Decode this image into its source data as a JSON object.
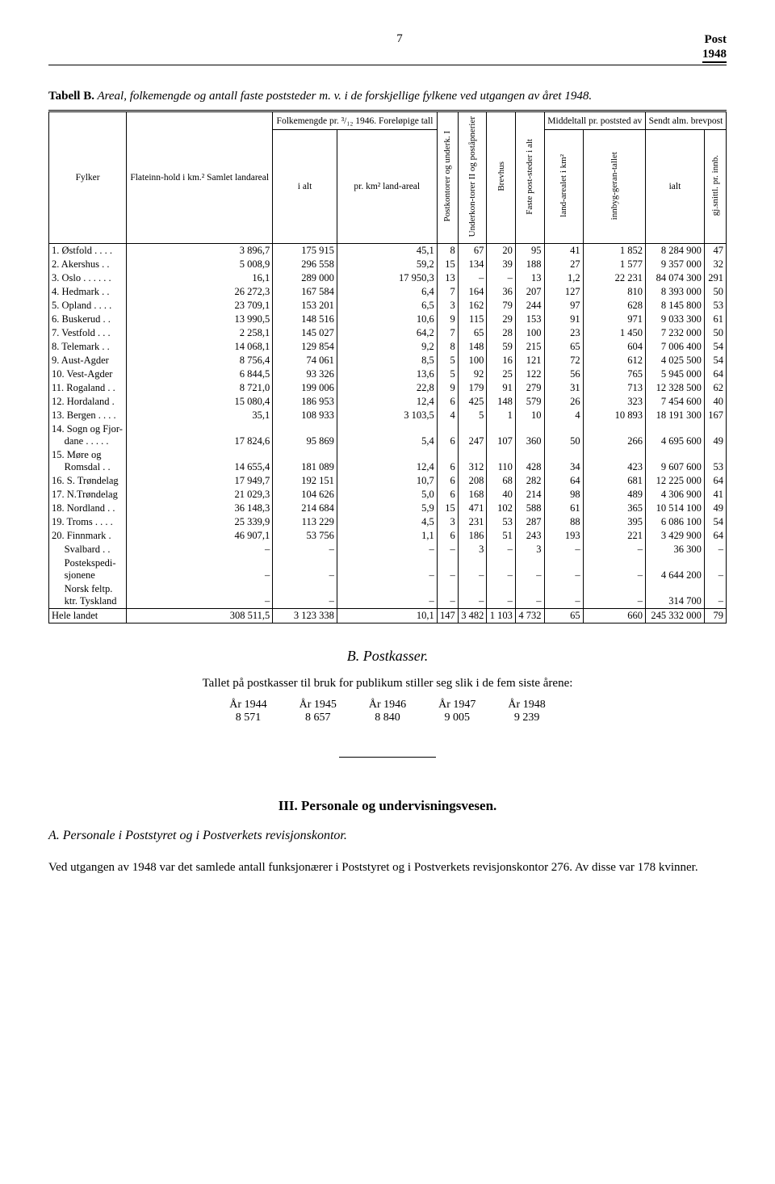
{
  "page_number": "7",
  "post_label": "Post",
  "year_label": "1948",
  "table_caption_prefix": "Tabell B.",
  "table_caption": "Areal, folkemengde og antall faste poststeder m. v. i de forskjellige fylkene ved utgangen av året 1948.",
  "headers": {
    "fylker": "Fylker",
    "flateinn": "Flateinn-hold i km.²\nSamlet landareal",
    "folkemengde_group": "Folkemengde pr. ³/₁₂ 1946. Foreløpige tall",
    "ialt": "i alt",
    "prkm2": "pr. km² land-areal",
    "postkontorer": "Postkontorer og underk. I",
    "underkon": "Underkon-torer II og poståpnerier",
    "brevhus": "Brevhus",
    "faste": "Faste post-steder i alt",
    "middeltall_group": "Middeltall pr. poststed av",
    "landarealet": "land-arealet i km²",
    "innbyg": "innbyg-geran-tallet",
    "sendt_group": "Sendt alm. brevpost",
    "jalt": "ialt",
    "gjsnitt": "gj.snittl. pr. innb."
  },
  "rows": [
    {
      "name": "1. Østfold . . . .",
      "flate": "3 896,7",
      "ialt": "175 915",
      "prkm": "45,1",
      "pk": "8",
      "uk": "67",
      "brev": "20",
      "faste": "95",
      "land": "41",
      "innb": "1 852",
      "jalt": "8 284 900",
      "gj": "47"
    },
    {
      "name": "2. Akershus . .",
      "flate": "5 008,9",
      "ialt": "296 558",
      "prkm": "59,2",
      "pk": "15",
      "uk": "134",
      "brev": "39",
      "faste": "188",
      "land": "27",
      "innb": "1 577",
      "jalt": "9 357 000",
      "gj": "32"
    },
    {
      "name": "3. Oslo . . . . . .",
      "flate": "16,1",
      "ialt": "289 000",
      "prkm": "17 950,3",
      "pk": "13",
      "uk": "–",
      "brev": "–",
      "faste": "13",
      "land": "1,2",
      "innb": "22 231",
      "jalt": "84 074 300",
      "gj": "291"
    },
    {
      "name": "4. Hedmark . .",
      "flate": "26 272,3",
      "ialt": "167 584",
      "prkm": "6,4",
      "pk": "7",
      "uk": "164",
      "brev": "36",
      "faste": "207",
      "land": "127",
      "innb": "810",
      "jalt": "8 393 000",
      "gj": "50"
    },
    {
      "name": "5. Opland . . . .",
      "flate": "23 709,1",
      "ialt": "153 201",
      "prkm": "6,5",
      "pk": "3",
      "uk": "162",
      "brev": "79",
      "faste": "244",
      "land": "97",
      "innb": "628",
      "jalt": "8 145 800",
      "gj": "53"
    },
    {
      "name": "6. Buskerud . .",
      "flate": "13 990,5",
      "ialt": "148 516",
      "prkm": "10,6",
      "pk": "9",
      "uk": "115",
      "brev": "29",
      "faste": "153",
      "land": "91",
      "innb": "971",
      "jalt": "9 033 300",
      "gj": "61"
    },
    {
      "name": "7. Vestfold . . .",
      "flate": "2 258,1",
      "ialt": "145 027",
      "prkm": "64,2",
      "pk": "7",
      "uk": "65",
      "brev": "28",
      "faste": "100",
      "land": "23",
      "innb": "1 450",
      "jalt": "7 232 000",
      "gj": "50"
    },
    {
      "name": "8. Telemark . .",
      "flate": "14 068,1",
      "ialt": "129 854",
      "prkm": "9,2",
      "pk": "8",
      "uk": "148",
      "brev": "59",
      "faste": "215",
      "land": "65",
      "innb": "604",
      "jalt": "7 006 400",
      "gj": "54"
    },
    {
      "name": "9. Aust-Agder",
      "flate": "8 756,4",
      "ialt": "74 061",
      "prkm": "8,5",
      "pk": "5",
      "uk": "100",
      "brev": "16",
      "faste": "121",
      "land": "72",
      "innb": "612",
      "jalt": "4 025 500",
      "gj": "54"
    },
    {
      "name": "10. Vest-Agder",
      "flate": "6 844,5",
      "ialt": "93 326",
      "prkm": "13,6",
      "pk": "5",
      "uk": "92",
      "brev": "25",
      "faste": "122",
      "land": "56",
      "innb": "765",
      "jalt": "5 945 000",
      "gj": "64"
    },
    {
      "name": "11. Rogaland . .",
      "flate": "8 721,0",
      "ialt": "199 006",
      "prkm": "22,8",
      "pk": "9",
      "uk": "179",
      "brev": "91",
      "faste": "279",
      "land": "31",
      "innb": "713",
      "jalt": "12 328 500",
      "gj": "62"
    },
    {
      "name": "12. Hordaland .",
      "flate": "15 080,4",
      "ialt": "186 953",
      "prkm": "12,4",
      "pk": "6",
      "uk": "425",
      "brev": "148",
      "faste": "579",
      "land": "26",
      "innb": "323",
      "jalt": "7 454 600",
      "gj": "40"
    },
    {
      "name": "13. Bergen . . . .",
      "flate": "35,1",
      "ialt": "108 933",
      "prkm": "3 103,5",
      "pk": "4",
      "uk": "5",
      "brev": "1",
      "faste": "10",
      "land": "4",
      "innb": "10 893",
      "jalt": "18 191 300",
      "gj": "167"
    },
    {
      "name": "14. Sogn og Fjor-<br>&nbsp;&nbsp;&nbsp;&nbsp;&nbsp;dane . . . . .",
      "flate": "17 824,6",
      "ialt": "95 869",
      "prkm": "5,4",
      "pk": "6",
      "uk": "247",
      "brev": "107",
      "faste": "360",
      "land": "50",
      "innb": "266",
      "jalt": "4 695 600",
      "gj": "49"
    },
    {
      "name": "15. Møre og<br>&nbsp;&nbsp;&nbsp;&nbsp;&nbsp;Romsdal . .",
      "flate": "14 655,4",
      "ialt": "181 089",
      "prkm": "12,4",
      "pk": "6",
      "uk": "312",
      "brev": "110",
      "faste": "428",
      "land": "34",
      "innb": "423",
      "jalt": "9 607 600",
      "gj": "53"
    },
    {
      "name": "16. S. Trøndelag",
      "flate": "17 949,7",
      "ialt": "192 151",
      "prkm": "10,7",
      "pk": "6",
      "uk": "208",
      "brev": "68",
      "faste": "282",
      "land": "64",
      "innb": "681",
      "jalt": "12 225 000",
      "gj": "64"
    },
    {
      "name": "17. N.Trøndelag",
      "flate": "21 029,3",
      "ialt": "104 626",
      "prkm": "5,0",
      "pk": "6",
      "uk": "168",
      "brev": "40",
      "faste": "214",
      "land": "98",
      "innb": "489",
      "jalt": "4 306 900",
      "gj": "41"
    },
    {
      "name": "18. Nordland . .",
      "flate": "36 148,3",
      "ialt": "214 684",
      "prkm": "5,9",
      "pk": "15",
      "uk": "471",
      "brev": "102",
      "faste": "588",
      "land": "61",
      "innb": "365",
      "jalt": "10 514 100",
      "gj": "49"
    },
    {
      "name": "19. Troms . . . .",
      "flate": "25 339,9",
      "ialt": "113 229",
      "prkm": "4,5",
      "pk": "3",
      "uk": "231",
      "brev": "53",
      "faste": "287",
      "land": "88",
      "innb": "395",
      "jalt": "6 086 100",
      "gj": "54"
    },
    {
      "name": "20. Finnmark .",
      "flate": "46 907,1",
      "ialt": "53 756",
      "prkm": "1,1",
      "pk": "6",
      "uk": "186",
      "brev": "51",
      "faste": "243",
      "land": "193",
      "innb": "221",
      "jalt": "3 429 900",
      "gj": "64"
    },
    {
      "name": "&nbsp;&nbsp;&nbsp;&nbsp;&nbsp;Svalbard . .",
      "flate": "–",
      "ialt": "–",
      "prkm": "–",
      "pk": "–",
      "uk": "3",
      "brev": "–",
      "faste": "3",
      "land": "–",
      "innb": "–",
      "jalt": "36 300",
      "gj": "–"
    },
    {
      "name": "&nbsp;&nbsp;&nbsp;&nbsp;&nbsp;Postekspedi-<br>&nbsp;&nbsp;&nbsp;&nbsp;&nbsp;sjonene",
      "flate": "–",
      "ialt": "–",
      "prkm": "–",
      "pk": "–",
      "uk": "–",
      "brev": "–",
      "faste": "–",
      "land": "–",
      "innb": "–",
      "jalt": "4 644 200",
      "gj": "–"
    },
    {
      "name": "&nbsp;&nbsp;&nbsp;&nbsp;&nbsp;Norsk feltp.<br>&nbsp;&nbsp;&nbsp;&nbsp;&nbsp;ktr. Tyskland",
      "flate": "–",
      "ialt": "–",
      "prkm": "–",
      "pk": "–",
      "uk": "–",
      "brev": "–",
      "faste": "–",
      "land": "–",
      "innb": "–",
      "jalt": "314 700",
      "gj": "–"
    }
  ],
  "total_row": {
    "name": "Hele landet",
    "flate": "308 511,5",
    "ialt": "3 123 338",
    "prkm": "10,1",
    "pk": "147",
    "uk": "3 482",
    "brev": "1 103",
    "faste": "4 732",
    "land": "65",
    "innb": "660",
    "jalt": "245 332 000",
    "gj": "79"
  },
  "section_b_title": "B. Postkasser.",
  "section_b_text": "Tallet på postkasser til bruk for publikum stiller seg slik i de fem siste årene:",
  "years": [
    {
      "y": "År 1944",
      "v": "8 571"
    },
    {
      "y": "År 1945",
      "v": "8 657"
    },
    {
      "y": "År 1946",
      "v": "8 840"
    },
    {
      "y": "År 1947",
      "v": "9 005"
    },
    {
      "y": "År 1948",
      "v": "9 239"
    }
  ],
  "section_iii_title": "III. Personale og undervisningsvesen.",
  "section_a_title": "A. Personale i Poststyret og i Postverkets revisjonskontor.",
  "section_a_text": "Ved utgangen av 1948 var det samlede antall funksjonærer i Poststyret og i Postverkets revisjonskontor 276. Av disse var 178 kvinner."
}
